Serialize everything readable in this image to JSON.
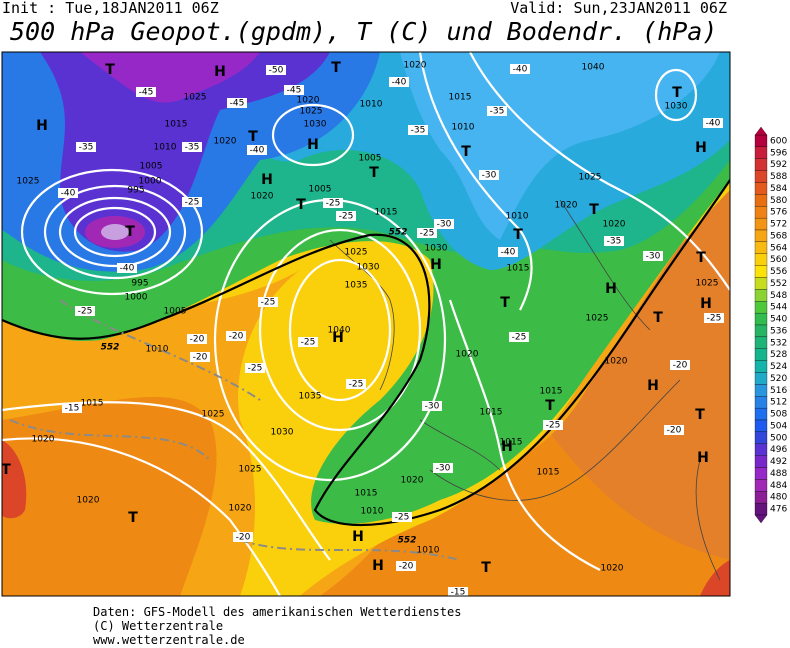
{
  "header": {
    "init": "Init : Tue,18JAN2011 06Z",
    "valid": "Valid: Sun,23JAN2011 06Z",
    "title": "500 hPa Geopot.(gpdm), T (C) und Bodendr. (hPa)"
  },
  "legend": {
    "values": [
      600,
      596,
      592,
      588,
      584,
      580,
      576,
      572,
      568,
      564,
      560,
      556,
      552,
      548,
      544,
      540,
      536,
      532,
      528,
      524,
      520,
      516,
      512,
      508,
      504,
      500,
      496,
      492,
      488,
      484,
      480,
      476
    ],
    "colors": [
      "#b4003c",
      "#c81e3c",
      "#d23232",
      "#dc4628",
      "#e45a1e",
      "#e86e14",
      "#ee8214",
      "#f29414",
      "#f6a614",
      "#f8ba10",
      "#fad00c",
      "#fce208",
      "#c8dc1e",
      "#8cd232",
      "#50c83c",
      "#32bc50",
      "#28b464",
      "#1eb478",
      "#14b48c",
      "#14b4aa",
      "#1eaac8",
      "#2896dc",
      "#2882e6",
      "#1e6ef0",
      "#1e5af0",
      "#3246dc",
      "#5a32d2",
      "#7828c8",
      "#9628c8",
      "#a028b4",
      "#8c1e96",
      "#64147d"
    ]
  },
  "map_labels": {
    "pressure": [
      "1020",
      "1040",
      "1025",
      "1020",
      "1025",
      "1010",
      "1015",
      "1030",
      "1015",
      "1030",
      "1010",
      "1010",
      "1020",
      "1005",
      "1025",
      "1005",
      "1000",
      "1025",
      "1020",
      "1005",
      "995",
      "1015",
      "1010",
      "1020",
      "1020",
      "1030",
      "1025",
      "1015",
      "1030",
      "1035",
      "1025",
      "995",
      "1000",
      "1005",
      "1040",
      "1025",
      "1010",
      "1020",
      "1020",
      "1035",
      "1015",
      "1025",
      "1015",
      "1015",
      "1030",
      "1020",
      "1015",
      "1015",
      "1025",
      "1020",
      "1020",
      "1015",
      "1020",
      "1010",
      "1010",
      "1020"
    ],
    "temperature": [
      "-50",
      "-45",
      "-45",
      "-45",
      "-40",
      "-40",
      "-35",
      "-35",
      "-35",
      "-35",
      "-40",
      "-30",
      "-40",
      "-25",
      "-25",
      "-25",
      "-30",
      "-35",
      "-30",
      "-40",
      "-25",
      "-40",
      "-25",
      "-25",
      "-20",
      "-20",
      "-20",
      "-25",
      "-25",
      "-25",
      "-20",
      "-25",
      "-30",
      "-15",
      "-25",
      "-25",
      "-30",
      "-20",
      "-25",
      "-20",
      "-20",
      "-15",
      "-40"
    ],
    "centers": [
      "H",
      "T",
      "H",
      "T",
      "T",
      "H",
      "T",
      "T",
      "H",
      "T",
      "T",
      "T",
      "H",
      "T",
      "H",
      "T",
      "T",
      "H",
      "T",
      "T",
      "H",
      "H",
      "H",
      "T",
      "T",
      "H",
      "H",
      "T",
      "T",
      "H",
      "H",
      "T"
    ],
    "contour": [
      "552",
      "552",
      "552"
    ]
  },
  "footer": [
    "Daten: GFS-Modell des amerikanischen Wetterdienstes",
    "(C) Wetterzentrale",
    "www.wetterzentrale.de"
  ]
}
